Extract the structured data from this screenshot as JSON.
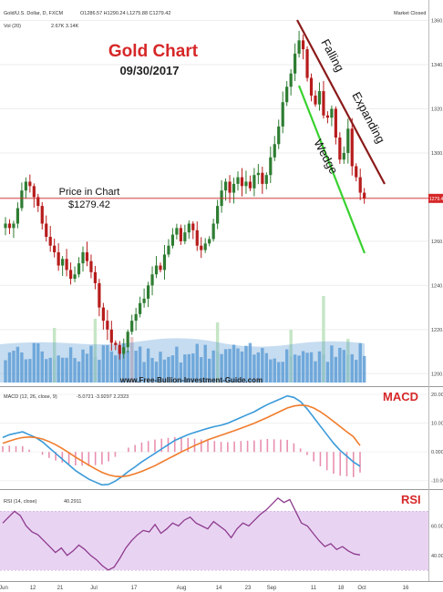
{
  "header": {
    "symbol": "Gold/U.S. Dollar, D, FXCM",
    "ohlc": "O1286.57 H1290.24 L1275.88 C1279.42",
    "volume": "Vol (20)",
    "vol_values": "2.67K  3.14K",
    "logo": "Market Closed"
  },
  "overlay": {
    "title": "Gold Chart",
    "date": "09/30/2017",
    "price_label": "Price in Chart",
    "price_value": "$1279.42",
    "pattern_top": "Falling",
    "pattern_mid": "Expanding",
    "pattern_bottom": "Wedge",
    "website": "www.Free-Bullion-Investment-Guide.com"
  },
  "macd_header": {
    "label": "MACD (12, 26, close, 9)",
    "values": "-5.0721  -3.9297  2.2323"
  },
  "rsi_header": {
    "label": "RSI (14, close)",
    "value": "40.2911"
  },
  "panel_labels": {
    "macd": "MACD",
    "rsi": "RSI"
  },
  "colors": {
    "up": "#2e7d32",
    "down": "#b71c1c",
    "volume": "#5b9bd5",
    "macd_line": "#3a9ad9",
    "signal_line": "#f07c2c",
    "histogram": "#e88fb0",
    "rsi_line": "#8e3a8e",
    "rsi_band": "#e8d4f2",
    "upper_wedge": "#8b1a1a",
    "lower_wedge": "#39d12f",
    "price_line": "#d62728"
  },
  "chart_data": [
    {
      "type": "candlestick",
      "title": "Gold Chart",
      "subtitle": "09/30/2017",
      "y_ticks": [
        1200,
        1220,
        1240,
        1260,
        1280,
        1300,
        1320,
        1340,
        1360
      ],
      "ylim": [
        1196,
        1366
      ],
      "current_price": 1279.42,
      "x_ticks": [
        "Jun",
        "12",
        "21",
        "Jul",
        "17",
        "Aug",
        "14",
        "23",
        "Sep",
        "11",
        "18",
        "Oct",
        "16"
      ],
      "close": [
        1268,
        1266,
        1268,
        1275,
        1283,
        1287,
        1285,
        1280,
        1276,
        1268,
        1262,
        1258,
        1255,
        1249,
        1252,
        1247,
        1243,
        1245,
        1250,
        1255,
        1251,
        1246,
        1241,
        1230,
        1224,
        1220,
        1214,
        1213,
        1209,
        1212,
        1219,
        1224,
        1227,
        1232,
        1234,
        1240,
        1245,
        1249,
        1247,
        1254,
        1258,
        1263,
        1266,
        1260,
        1264,
        1268,
        1265,
        1258,
        1256,
        1259,
        1261,
        1268,
        1276,
        1283,
        1287,
        1282,
        1286,
        1289,
        1285,
        1287,
        1284,
        1290,
        1291,
        1286,
        1290,
        1298,
        1304,
        1312,
        1323,
        1330,
        1336,
        1345,
        1351,
        1347,
        1334,
        1326,
        1322,
        1328,
        1317,
        1316,
        1320,
        1307,
        1297,
        1300,
        1311,
        1294,
        1289,
        1282,
        1279.42
      ],
      "volume_ticks": []
    },
    {
      "type": "line",
      "title": "MACD (12, 26, close, 9)",
      "y_ticks": [
        -10,
        0,
        10,
        20
      ],
      "ylim": [
        -12,
        21
      ],
      "series": [
        {
          "name": "MACD",
          "values": [
            5,
            6,
            6.5,
            7,
            6,
            5,
            3.5,
            1.5,
            -0.5,
            -2.5,
            -4.5,
            -6.5,
            -8,
            -9.5,
            -10.5,
            -11.5,
            -11.3,
            -10.2,
            -8.6,
            -6.8,
            -5.2,
            -3.5,
            -2,
            -0.5,
            1,
            2.5,
            4,
            5,
            6,
            6.8,
            7.5,
            8.2,
            8.8,
            9.3,
            10,
            11,
            12,
            13,
            14,
            15.3,
            16.5,
            17.5,
            18.5,
            19.5,
            19,
            17.5,
            15,
            12,
            9,
            6,
            3,
            0.5,
            -1.5,
            -3.5,
            -5
          ]
        },
        {
          "name": "Signal",
          "values": [
            3,
            3.8,
            4.5,
            5,
            5.2,
            5,
            4.5,
            3.6,
            2.5,
            1.2,
            -0.3,
            -1.8,
            -3.2,
            -4.6,
            -5.9,
            -7.1,
            -8,
            -8.5,
            -8.6,
            -8.3,
            -7.6,
            -6.8,
            -5.8,
            -4.8,
            -3.6,
            -2.4,
            -1.2,
            0,
            1.1,
            2.2,
            3.2,
            4.2,
            5,
            5.8,
            6.6,
            7.4,
            8.2,
            9.1,
            10,
            11,
            12,
            13.1,
            14.2,
            15.3,
            16,
            16.3,
            16.1,
            15.3,
            14,
            12.4,
            10.6,
            8.8,
            7,
            5.3,
            2.2
          ]
        }
      ]
    },
    {
      "type": "line",
      "title": "RSI (14, close)",
      "y_ticks": [
        40,
        60
      ],
      "ylim": [
        25,
        82
      ],
      "band": [
        30,
        70
      ],
      "series": [
        {
          "name": "RSI",
          "values": [
            62,
            66,
            70,
            67,
            60,
            56,
            54,
            50,
            46,
            42,
            45,
            40,
            43,
            47,
            44,
            40,
            37,
            33,
            30,
            32,
            38,
            45,
            50,
            54,
            57,
            56,
            61,
            55,
            58,
            62,
            60,
            64,
            66,
            62,
            60,
            58,
            63,
            60,
            57,
            52,
            58,
            62,
            60,
            64,
            68,
            71,
            75,
            79,
            76,
            78,
            70,
            62,
            60,
            55,
            50,
            46,
            48,
            44,
            46,
            43,
            41,
            40.29
          ]
        }
      ]
    }
  ]
}
